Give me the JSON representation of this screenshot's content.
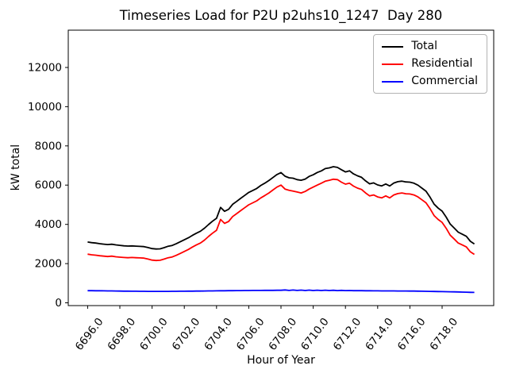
{
  "figure": {
    "title": "Timeseries Load for P2U p2uhs10_1247  Day 280",
    "xlabel": "Hour of Year",
    "ylabel": "kW total"
  },
  "legend": {
    "items": [
      {
        "label": "Total",
        "color": "#000000"
      },
      {
        "label": "Residential",
        "color": "#ff0000"
      },
      {
        "label": "Commercial",
        "color": "#0000ff"
      }
    ]
  },
  "chart_data": {
    "type": "line",
    "title": "Timeseries Load for P2U p2uhs10_1247  Day 280",
    "xlabel": "Hour of Year",
    "ylabel": "kW total",
    "grid": false,
    "legend_position": "upper right",
    "xlim": [
      6694.8,
      6721.2
    ],
    "ylim": [
      -140,
      13900
    ],
    "xticks": [
      6696,
      6698,
      6700,
      6702,
      6704,
      6706,
      6708,
      6710,
      6712,
      6714,
      6716,
      6718
    ],
    "xtick_labels": [
      "6696.0",
      "6698.0",
      "6700.0",
      "6702.0",
      "6704.0",
      "6706.0",
      "6708.0",
      "6710.0",
      "6712.0",
      "6714.0",
      "6716.0",
      "6718.0"
    ],
    "yticks": [
      0,
      2000,
      4000,
      6000,
      8000,
      10000,
      12000
    ],
    "ytick_labels": [
      "0",
      "2000",
      "4000",
      "6000",
      "8000",
      "10000",
      "12000"
    ],
    "x": [
      6696.0,
      6696.25,
      6696.5,
      6696.75,
      6697.0,
      6697.25,
      6697.5,
      6697.75,
      6698.0,
      6698.25,
      6698.5,
      6698.75,
      6699.0,
      6699.25,
      6699.5,
      6699.75,
      6700.0,
      6700.25,
      6700.5,
      6700.75,
      6701.0,
      6701.25,
      6701.5,
      6701.75,
      6702.0,
      6702.25,
      6702.5,
      6702.75,
      6703.0,
      6703.25,
      6703.5,
      6703.75,
      6704.0,
      6704.25,
      6704.5,
      6704.75,
      6705.0,
      6705.25,
      6705.5,
      6705.75,
      6706.0,
      6706.25,
      6706.5,
      6706.75,
      6707.0,
      6707.25,
      6707.5,
      6707.75,
      6708.0,
      6708.25,
      6708.5,
      6708.75,
      6709.0,
      6709.25,
      6709.5,
      6709.75,
      6710.0,
      6710.25,
      6710.5,
      6710.75,
      6711.0,
      6711.25,
      6711.5,
      6711.75,
      6712.0,
      6712.25,
      6712.5,
      6712.75,
      6713.0,
      6713.25,
      6713.5,
      6713.75,
      6714.0,
      6714.25,
      6714.5,
      6714.75,
      6715.0,
      6715.25,
      6715.5,
      6715.75,
      6716.0,
      6716.25,
      6716.5,
      6716.75,
      6717.0,
      6717.25,
      6717.5,
      6717.75,
      6718.0,
      6718.25,
      6718.5,
      6718.75,
      6719.0,
      6719.25,
      6719.5,
      6719.75,
      6720.0
    ],
    "series": [
      {
        "name": "Total",
        "color": "#000000",
        "values": [
          3100,
          3069,
          3047,
          3015,
          2992,
          2970,
          2988,
          2955,
          2930,
          2908,
          2896,
          2904,
          2892,
          2880,
          2868,
          2816,
          2765,
          2744,
          2754,
          2815,
          2886,
          2928,
          3010,
          3112,
          3214,
          3316,
          3438,
          3550,
          3652,
          3804,
          3987,
          4160,
          4312,
          4865,
          4667,
          4769,
          5021,
          5173,
          5325,
          5477,
          5629,
          5731,
          5833,
          5984,
          6105,
          6237,
          6388,
          6539,
          6640,
          6456,
          6374,
          6352,
          6282,
          6250,
          6310,
          6448,
          6530,
          6646,
          6728,
          6844,
          6878,
          6940,
          6906,
          6786,
          6674,
          6730,
          6572,
          6476,
          6400,
          6218,
          6066,
          6114,
          6012,
          5960,
          6059,
          5958,
          6107,
          6176,
          6205,
          6164,
          6152,
          6100,
          5997,
          5844,
          5690,
          5386,
          5032,
          4828,
          4674,
          4370,
          4015,
          3810,
          3604,
          3498,
          3392,
          3136,
          3000
        ]
      },
      {
        "name": "Residential",
        "color": "#ff0000",
        "values": [
          2480,
          2450,
          2430,
          2400,
          2380,
          2360,
          2380,
          2350,
          2330,
          2310,
          2300,
          2310,
          2300,
          2290,
          2280,
          2230,
          2180,
          2160,
          2170,
          2230,
          2300,
          2340,
          2420,
          2520,
          2620,
          2720,
          2840,
          2950,
          3050,
          3200,
          3380,
          3550,
          3700,
          4250,
          4050,
          4150,
          4400,
          4550,
          4700,
          4850,
          5000,
          5100,
          5200,
          5350,
          5470,
          5600,
          5750,
          5900,
          6000,
          5800,
          5740,
          5700,
          5650,
          5600,
          5680,
          5800,
          5900,
          6000,
          6100,
          6200,
          6250,
          6300,
          6280,
          6150,
          6050,
          6100,
          5950,
          5850,
          5780,
          5600,
          5450,
          5500,
          5400,
          5350,
          5450,
          5350,
          5500,
          5570,
          5600,
          5560,
          5550,
          5500,
          5400,
          5250,
          5100,
          4800,
          4450,
          4250,
          4100,
          3800,
          3450,
          3250,
          3050,
          2950,
          2850,
          2600,
          2470
        ]
      },
      {
        "name": "Commercial",
        "color": "#0000ff",
        "values": [
          620,
          619,
          617,
          615,
          612,
          610,
          608,
          605,
          600,
          598,
          596,
          594,
          592,
          590,
          588,
          586,
          585,
          584,
          584,
          585,
          586,
          588,
          590,
          592,
          594,
          596,
          598,
          600,
          602,
          604,
          607,
          610,
          612,
          615,
          617,
          619,
          621,
          623,
          625,
          627,
          629,
          631,
          633,
          634,
          635,
          637,
          638,
          639,
          640,
          656,
          634,
          652,
          632,
          650,
          630,
          648,
          630,
          646,
          628,
          644,
          628,
          640,
          626,
          636,
          624,
          630,
          622,
          626,
          620,
          618,
          616,
          614,
          612,
          610,
          609,
          608,
          607,
          606,
          605,
          604,
          602,
          600,
          597,
          594,
          590,
          586,
          582,
          578,
          574,
          570,
          565,
          560,
          554,
          548,
          542,
          536,
          530
        ]
      }
    ]
  }
}
